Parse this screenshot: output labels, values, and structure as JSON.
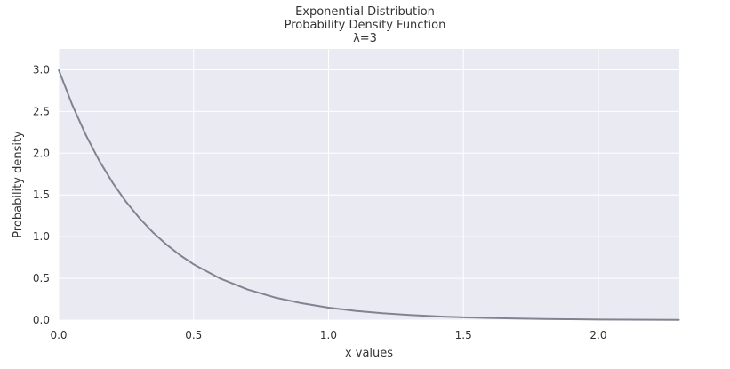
{
  "chart_data": {
    "type": "line",
    "title_lines": [
      "Exponential Distribution",
      "Probability Density Function",
      "λ=3"
    ],
    "xlabel": "x values",
    "ylabel": "Probability density",
    "xlim": [
      0,
      2.3
    ],
    "ylim": [
      0,
      3.25
    ],
    "grid": true,
    "x_ticks": [
      {
        "value": 0.0,
        "label": "0.0"
      },
      {
        "value": 0.5,
        "label": "0.5"
      },
      {
        "value": 1.0,
        "label": "1.0"
      },
      {
        "value": 1.5,
        "label": "1.5"
      },
      {
        "value": 2.0,
        "label": "2.0"
      }
    ],
    "y_ticks": [
      {
        "value": 0.0,
        "label": "0.0"
      },
      {
        "value": 0.5,
        "label": "0.5"
      },
      {
        "value": 1.0,
        "label": "1.0"
      },
      {
        "value": 1.5,
        "label": "1.5"
      },
      {
        "value": 2.0,
        "label": "2.0"
      },
      {
        "value": 2.5,
        "label": "2.5"
      },
      {
        "value": 3.0,
        "label": "3.0"
      }
    ],
    "series": [
      {
        "color": "#7f8490",
        "x": [
          0.0,
          0.05,
          0.1,
          0.15,
          0.2,
          0.25,
          0.3,
          0.35,
          0.4,
          0.45,
          0.5,
          0.6,
          0.7,
          0.8,
          0.9,
          1.0,
          1.1,
          1.2,
          1.3,
          1.4,
          1.5,
          1.6,
          1.7,
          1.8,
          1.9,
          2.0,
          2.1,
          2.2,
          2.3
        ],
        "y": [
          3.0,
          2.582,
          2.222,
          1.912,
          1.646,
          1.417,
          1.22,
          1.049,
          0.904,
          0.778,
          0.669,
          0.496,
          0.367,
          0.272,
          0.202,
          0.149,
          0.111,
          0.082,
          0.061,
          0.045,
          0.033,
          0.025,
          0.018,
          0.014,
          0.01,
          0.007,
          0.005,
          0.004,
          0.003
        ]
      }
    ],
    "colors": {
      "plot_background": "#eaeaf2",
      "grid": "#ffffff",
      "text": "#333333"
    }
  }
}
